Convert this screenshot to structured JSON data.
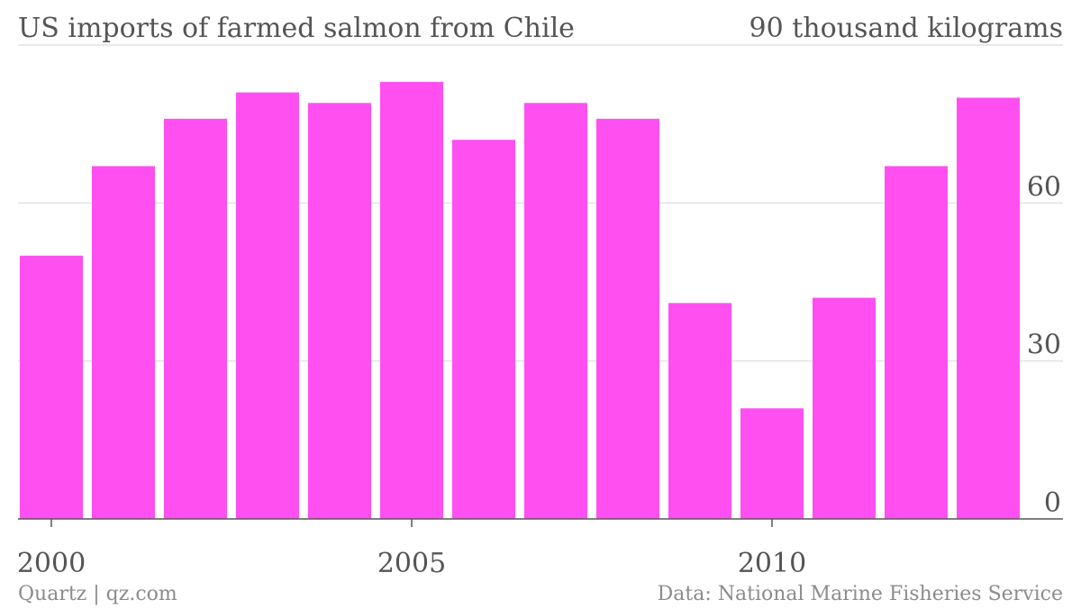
{
  "header": {
    "title": "US imports of farmed salmon from Chile",
    "unit_label": "90 thousand kilograms"
  },
  "footer": {
    "source_left": "Quartz | qz.com",
    "source_right": "Data: National Marine Fisheries Service"
  },
  "chart_data": {
    "type": "bar",
    "title": "US imports of farmed salmon from Chile",
    "xlabel": "",
    "ylabel": "",
    "unit": "90 thousand kilograms",
    "categories": [
      2000,
      2001,
      2002,
      2003,
      2004,
      2005,
      2006,
      2007,
      2008,
      2009,
      2010,
      2011,
      2012,
      2013
    ],
    "values": [
      50,
      67,
      76,
      81,
      79,
      83,
      72,
      79,
      76,
      41,
      21,
      42,
      67,
      80
    ],
    "ylim": [
      0,
      90
    ],
    "y_ticks": [
      0,
      30,
      60,
      90
    ],
    "x_tick_labels": [
      "2000",
      "2005",
      "2010"
    ],
    "y_axis_position": "right",
    "grid": true,
    "legend": "none",
    "bar_color": "#ff4ff0",
    "grid_color": "#e2e2e2",
    "axis_color": "#555555",
    "text_color": "#555555",
    "footer_color": "#8c8c8c"
  }
}
